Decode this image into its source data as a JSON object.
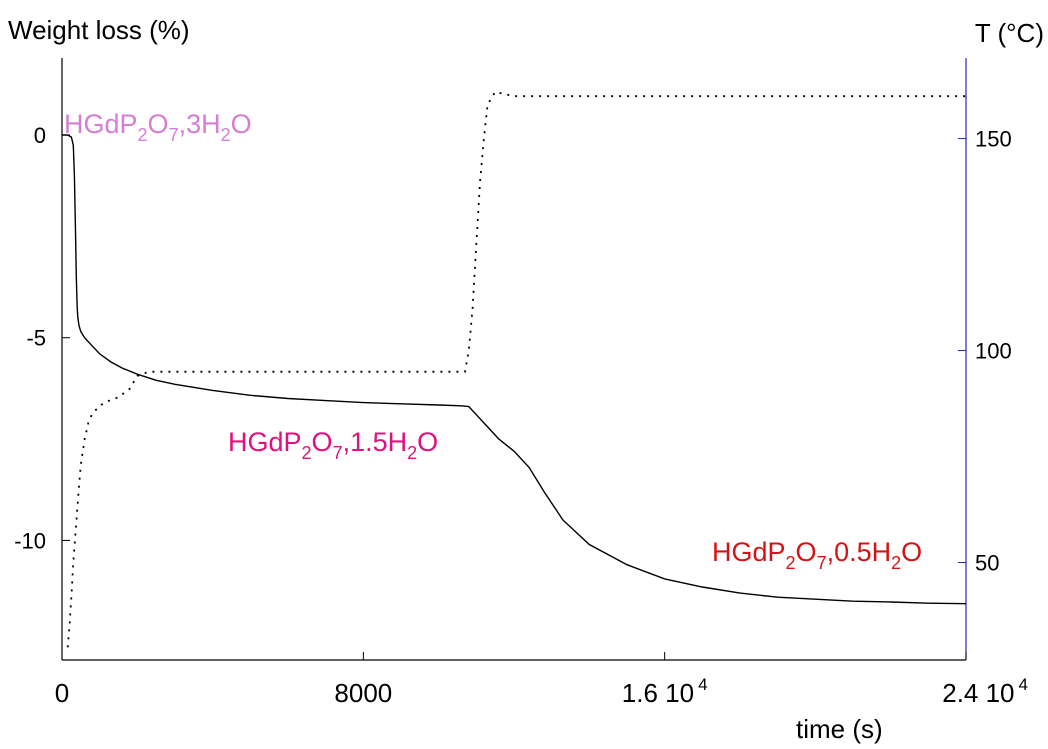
{
  "chart_data": {
    "type": "line",
    "ylabel_left": "Weight loss  (%)",
    "ylabel_right": "T (°C)",
    "xlabel": "time (s)",
    "xlim": [
      0,
      24000
    ],
    "ylim_left": [
      -12.95,
      1.9
    ],
    "ylim_right": [
      27,
      169
    ],
    "x_ticks": [
      {
        "value": 0,
        "label": "0",
        "exponent": ""
      },
      {
        "value": 8000,
        "label": "8000",
        "exponent": ""
      },
      {
        "value": 16000,
        "label": "1.6 10",
        "exponent": "4"
      },
      {
        "value": 24000,
        "label": "2.4 10",
        "exponent": "4"
      }
    ],
    "y_ticks_left": [
      0,
      -5,
      -10
    ],
    "y_ticks_right": [
      150,
      100,
      50
    ],
    "grid": false,
    "colors": {
      "weight_line": "#000000",
      "temperature_line": "#000000",
      "right_axis": "#2a2aa8",
      "label_hydrate3": "#d47ed4",
      "label_hydrate15": "#e0107f",
      "label_hydrate05": "#d41414"
    },
    "series": [
      {
        "axis": "left",
        "style": "solid",
        "x": [
          0,
          150,
          250,
          300,
          330,
          360,
          380,
          400,
          420,
          450,
          500,
          600,
          800,
          1000,
          1300,
          1600,
          2000,
          2500,
          3000,
          4000,
          5000,
          6000,
          7000,
          8000,
          9000,
          10000,
          10600,
          10800,
          11000,
          11300,
          11600,
          12000,
          12400,
          12800,
          13300,
          14000,
          15000,
          16000,
          17000,
          18000,
          19000,
          20000,
          21000,
          22000,
          23000,
          24000
        ],
        "values": [
          0.0,
          0.0,
          -0.05,
          -0.25,
          -1.0,
          -2.5,
          -3.5,
          -4.2,
          -4.5,
          -4.7,
          -4.85,
          -5.0,
          -5.2,
          -5.4,
          -5.6,
          -5.75,
          -5.9,
          -6.05,
          -6.15,
          -6.3,
          -6.42,
          -6.5,
          -6.55,
          -6.6,
          -6.63,
          -6.66,
          -6.68,
          -6.7,
          -6.9,
          -7.2,
          -7.5,
          -7.8,
          -8.2,
          -8.8,
          -9.5,
          -10.1,
          -10.6,
          -10.95,
          -11.15,
          -11.3,
          -11.4,
          -11.45,
          -11.5,
          -11.52,
          -11.55,
          -11.56
        ]
      },
      {
        "axis": "right",
        "style": "dotted",
        "x": [
          150,
          200,
          250,
          300,
          350,
          400,
          450,
          500,
          600,
          700,
          800,
          1000,
          1200,
          1500,
          1800,
          2000,
          2300,
          3000,
          5000,
          8000,
          10500,
          10700,
          10800,
          10900,
          11000,
          11100,
          11200,
          11300,
          11500,
          12000,
          16000,
          20000,
          24000
        ],
        "values": [
          30,
          35,
          42,
          50,
          56,
          62,
          68,
          73,
          79,
          83,
          85,
          87,
          88,
          89,
          91,
          94,
          95,
          95,
          95,
          95,
          95,
          95,
          100,
          110,
          125,
          140,
          150,
          158,
          161,
          160,
          160,
          160,
          160
        ]
      }
    ],
    "annotations": [
      {
        "id": "hydrate3",
        "parts": [
          {
            "t": "HGdP",
            "s": ""
          },
          {
            "t": "2",
            "s": "sub"
          },
          {
            "t": "O",
            "s": ""
          },
          {
            "t": "7",
            "s": "sub"
          },
          {
            "t": ",3H",
            "s": ""
          },
          {
            "t": "2",
            "s": "sub"
          },
          {
            "t": "O",
            "s": ""
          }
        ]
      },
      {
        "id": "hydrate15",
        "parts": [
          {
            "t": "HGdP",
            "s": ""
          },
          {
            "t": "2",
            "s": "sub"
          },
          {
            "t": "O",
            "s": ""
          },
          {
            "t": "7",
            "s": "sub"
          },
          {
            "t": ",1.5H",
            "s": ""
          },
          {
            "t": "2",
            "s": "sub"
          },
          {
            "t": "O",
            "s": ""
          }
        ]
      },
      {
        "id": "hydrate05",
        "parts": [
          {
            "t": "HGdP",
            "s": ""
          },
          {
            "t": "2",
            "s": "sub"
          },
          {
            "t": "O",
            "s": ""
          },
          {
            "t": "7",
            "s": "sub"
          },
          {
            "t": ",0.5H",
            "s": ""
          },
          {
            "t": "2",
            "s": "sub"
          },
          {
            "t": "O",
            "s": ""
          }
        ]
      }
    ]
  }
}
